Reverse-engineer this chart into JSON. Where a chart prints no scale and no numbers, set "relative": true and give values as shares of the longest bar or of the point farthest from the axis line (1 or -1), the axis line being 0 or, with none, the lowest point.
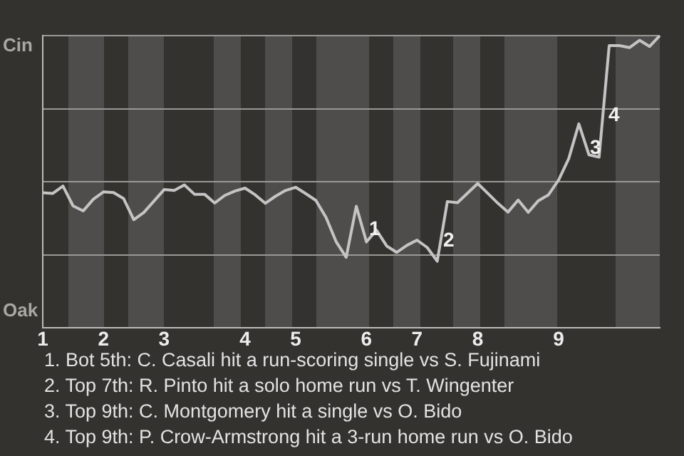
{
  "chart_data": {
    "type": "line",
    "relative": true,
    "categories": [
      "1",
      null,
      null,
      null,
      null,
      null,
      "2",
      null,
      null,
      null,
      null,
      null,
      "3",
      null,
      null,
      null,
      null,
      null,
      null,
      null,
      "4",
      null,
      null,
      null,
      null,
      "5",
      null,
      null,
      null,
      null,
      null,
      null,
      "6",
      null,
      null,
      null,
      null,
      "7",
      null,
      null,
      null,
      null,
      null,
      "8",
      null,
      null,
      null,
      null,
      null,
      null,
      null,
      "9",
      null,
      null,
      null,
      null,
      null,
      null,
      null,
      null,
      null,
      null
    ],
    "series": [
      {
        "color": "#c4c4c4",
        "values": [
          0.462,
          0.46,
          0.485,
          0.417,
          0.4,
          0.44,
          0.465,
          0.463,
          0.442,
          0.37,
          0.395,
          0.434,
          0.473,
          0.47,
          0.489,
          0.457,
          0.457,
          0.427,
          0.453,
          0.468,
          0.478,
          0.455,
          0.426,
          0.45,
          0.47,
          0.481,
          0.459,
          0.436,
          0.378,
          0.295,
          0.241,
          0.416,
          0.294,
          0.334,
          0.28,
          0.258,
          0.282,
          0.3,
          0.275,
          0.228,
          0.432,
          0.428,
          0.461,
          0.494,
          0.46,
          0.426,
          0.396,
          0.437,
          0.395,
          0.435,
          0.455,
          0.506,
          0.579,
          0.698,
          0.592,
          0.584,
          0.966,
          0.966,
          0.959,
          0.984,
          0.963,
          1
        ]
      }
    ],
    "grid": "y",
    "marker": "none",
    "annotations": [
      "Cin",
      "Oak",
      "1",
      "2",
      "3",
      "4",
      "1. Bot 5th: C. Casali hit a run-scoring single vs S. Fujinami",
      "2. Top 7th: R. Pinto hit a solo home run vs T. Wingenter",
      "3. Top 9th: C. Montgomery hit a single vs O. Bido",
      "4. Top 9th: P. Crow-Armstrong hit a 3-run home run vs O. Bido"
    ]
  }
}
